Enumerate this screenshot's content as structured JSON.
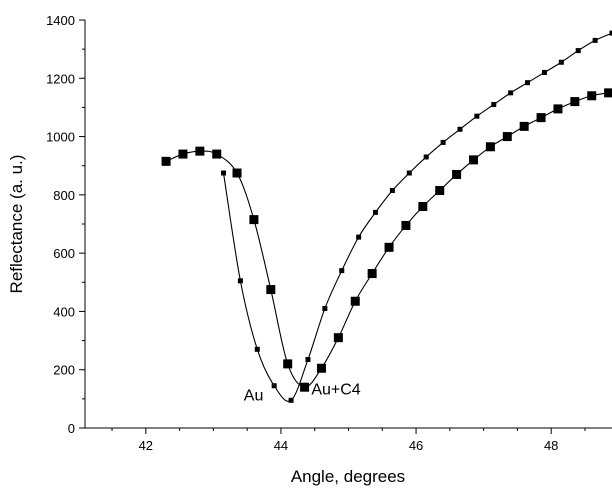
{
  "chart_data": {
    "type": "line",
    "title": "",
    "xlabel": "Angle, degrees",
    "ylabel": "Reflectance (a. u.)",
    "xlim": [
      41.1,
      48.9
    ],
    "ylim": [
      0,
      1400
    ],
    "xticks": [
      42,
      44,
      46,
      48
    ],
    "yticks": [
      0,
      200,
      400,
      600,
      800,
      1000,
      1200,
      1400
    ],
    "grid": false,
    "legend": "none",
    "series": [
      {
        "marker": "small-square",
        "color": "#000000",
        "x": [
          43.15,
          43.4,
          43.65,
          43.9,
          44.15,
          44.4,
          44.65,
          44.9,
          45.15,
          45.4,
          45.65,
          45.9,
          46.15,
          46.4,
          46.65,
          46.9,
          47.15,
          47.4,
          47.65,
          47.9,
          48.15,
          48.4,
          48.65,
          48.9
        ],
        "y": [
          875,
          505,
          270,
          145,
          95,
          235,
          410,
          540,
          655,
          740,
          815,
          875,
          930,
          980,
          1025,
          1070,
          1110,
          1150,
          1185,
          1220,
          1255,
          1295,
          1330,
          1355
        ]
      },
      {
        "marker": "large-square",
        "color": "#000000",
        "x": [
          42.3,
          42.55,
          42.8,
          43.05,
          43.35,
          43.6,
          43.85,
          44.1,
          44.35,
          44.6,
          44.85,
          45.1,
          45.35,
          45.6,
          45.85,
          46.1,
          46.35,
          46.6,
          46.85,
          47.1,
          47.35,
          47.6,
          47.85,
          48.1,
          48.35,
          48.6,
          48.85
        ],
        "y": [
          915,
          940,
          950,
          940,
          875,
          715,
          475,
          220,
          140,
          205,
          310,
          435,
          530,
          620,
          695,
          760,
          815,
          870,
          920,
          965,
          1000,
          1035,
          1065,
          1095,
          1120,
          1140,
          1150
        ]
      }
    ],
    "annotations": [
      {
        "text": "Au",
        "x": 43.45,
        "y": 95
      },
      {
        "text": "Au+C4",
        "x": 44.45,
        "y": 115
      }
    ]
  }
}
